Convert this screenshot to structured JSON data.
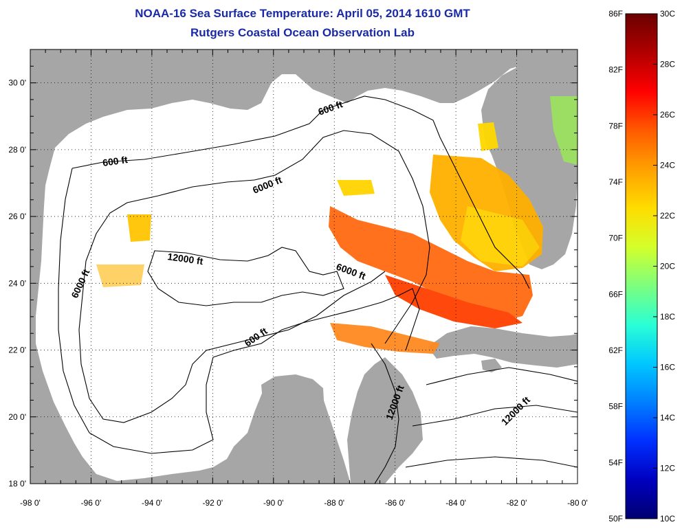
{
  "title": "NOAA-16 Sea Surface Temperature:  April 05, 2014 1610 GMT",
  "subtitle": "Rutgers Coastal Ocean Observation Lab",
  "lat_ticks": [
    "30 0'",
    "28 0'",
    "26 0'",
    "24 0'",
    "22 0'",
    "20 0'",
    "18 0'"
  ],
  "lon_ticks": [
    "-98 0'",
    "-96 0'",
    "-94 0'",
    "-92 0'",
    "-90 0'",
    "-88 0'",
    "-86 0'",
    "-84 0'",
    "-82 0'",
    "-80 0'"
  ],
  "contour_labels": [
    "600 ft",
    "600 ft",
    "600 ft",
    "6000 ft",
    "6000 ft",
    "6000 ft",
    "12000 ft",
    "12000 ft",
    "12000 ft"
  ],
  "colorbar": {
    "fahrenheit": [
      "86F",
      "82F",
      "78F",
      "74F",
      "70F",
      "66F",
      "62F",
      "58F",
      "54F",
      "50F"
    ],
    "celsius": [
      "30C",
      "28C",
      "26C",
      "24C",
      "22C",
      "20C",
      "18C",
      "16C",
      "14C",
      "12C",
      "10C"
    ],
    "colors": [
      "#6b0000",
      "#b00000",
      "#ff0000",
      "#ff5a00",
      "#ffa000",
      "#ffdc00",
      "#d4ff2a",
      "#7dff7d",
      "#2affd4",
      "#00c8ff",
      "#0080ff",
      "#0030ff",
      "#0000c0",
      "#000070"
    ]
  },
  "land_color": "#a6a6a6"
}
